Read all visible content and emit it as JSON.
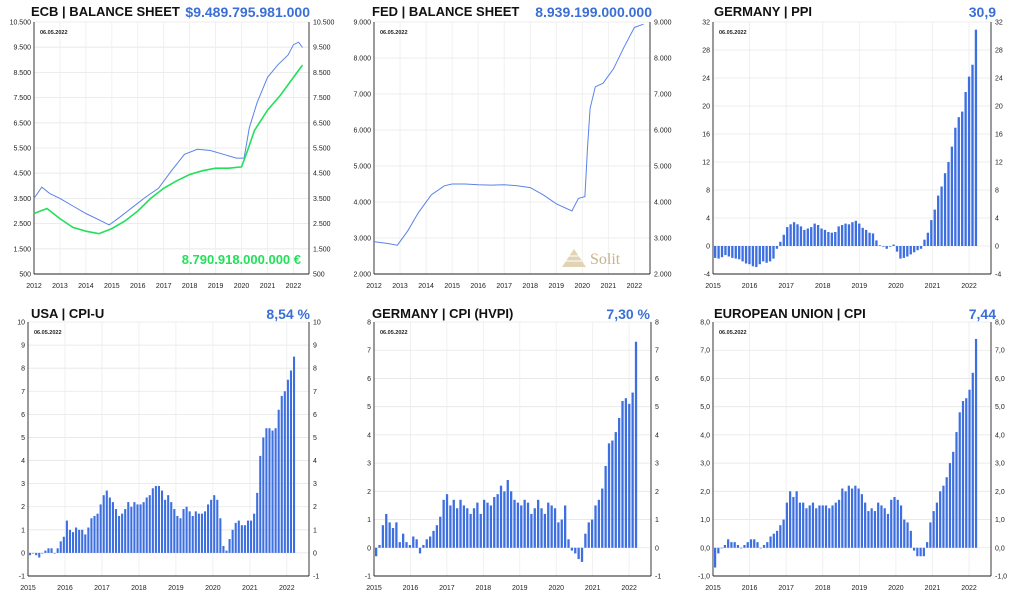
{
  "chart_data": [
    {
      "id": "ecb",
      "type": "line",
      "title": "ECB | BALANCE SHEET",
      "headline": "$9.489.795.981.000",
      "date_label": "06.05.2022",
      "annotation": "8.790.918.000.000 €",
      "ylim": [
        500,
        10500
      ],
      "yticks": [
        "500",
        "1.500",
        "2.500",
        "3.500",
        "4.500",
        "5.500",
        "6.500",
        "7.500",
        "8.500",
        "9.500",
        "10.500"
      ],
      "xlim": [
        2012,
        2022.6
      ],
      "xticks": [
        "2012",
        "2013",
        "2014",
        "2015",
        "2016",
        "2017",
        "2018",
        "2019",
        "2020",
        "2021",
        "2022"
      ],
      "grid": true,
      "series": [
        {
          "color": "#5b82e8",
          "x": [
            2012,
            2012.3,
            2012.6,
            2013,
            2013.5,
            2014,
            2014.5,
            2014.9,
            2015.3,
            2015.8,
            2016.3,
            2016.8,
            2017.3,
            2017.8,
            2018.3,
            2018.8,
            2019.3,
            2019.8,
            2020.1,
            2020.3,
            2020.6,
            2021,
            2021.4,
            2021.8,
            2022,
            2022.2,
            2022.35
          ],
          "y": [
            3500,
            3950,
            3700,
            3500,
            3200,
            2900,
            2650,
            2450,
            2750,
            3150,
            3550,
            3900,
            4600,
            5250,
            5450,
            5400,
            5250,
            5100,
            5100,
            6300,
            7300,
            8300,
            8800,
            9200,
            9600,
            9700,
            9490
          ]
        },
        {
          "color": "#22e05a",
          "x": [
            2012,
            2012.5,
            2013,
            2013.5,
            2014,
            2014.5,
            2015,
            2015.5,
            2016,
            2016.5,
            2017,
            2017.5,
            2018,
            2018.5,
            2019,
            2019.5,
            2020,
            2020.2,
            2020.5,
            2021,
            2021.5,
            2022,
            2022.35
          ],
          "y": [
            2900,
            3100,
            2700,
            2350,
            2200,
            2100,
            2300,
            2600,
            3000,
            3500,
            3900,
            4200,
            4450,
            4600,
            4700,
            4700,
            4750,
            5300,
            6200,
            7000,
            7600,
            8300,
            8790
          ]
        }
      ]
    },
    {
      "id": "fed",
      "type": "line",
      "title": "FED | BALANCE SHEET",
      "headline": "8.939.199.000.000",
      "date_label": "06.05.2022",
      "watermark": "Solit",
      "ylim": [
        2000,
        9000
      ],
      "yticks": [
        "2.000",
        "3.000",
        "4.000",
        "5.000",
        "6.000",
        "7.000",
        "8.000",
        "9.000"
      ],
      "xlim": [
        2012,
        2022.6
      ],
      "xticks": [
        "2012",
        "2013",
        "2014",
        "2015",
        "2016",
        "2017",
        "2018",
        "2019",
        "2020",
        "2021",
        "2022"
      ],
      "grid": true,
      "series": [
        {
          "color": "#5b82e8",
          "x": [
            2012,
            2012.5,
            2012.9,
            2013.3,
            2013.7,
            2014.2,
            2014.7,
            2015,
            2015.5,
            2016,
            2016.5,
            2017,
            2017.5,
            2018,
            2018.5,
            2019,
            2019.6,
            2019.85,
            2020.1,
            2020.2,
            2020.3,
            2020.5,
            2020.8,
            2021.2,
            2021.6,
            2022,
            2022.35
          ],
          "y": [
            2900,
            2850,
            2800,
            3200,
            3700,
            4200,
            4450,
            4500,
            4500,
            4480,
            4470,
            4480,
            4450,
            4400,
            4200,
            3950,
            3750,
            4100,
            4150,
            5500,
            6600,
            7200,
            7300,
            7700,
            8300,
            8850,
            8940
          ]
        }
      ]
    },
    {
      "id": "ppi",
      "type": "bar",
      "title": "GERMANY | PPI",
      "headline": "30,9",
      "date_label": "06.05.2022",
      "ylim": [
        -4,
        32
      ],
      "yticks": [
        "-4",
        "0",
        "4",
        "8",
        "12",
        "16",
        "20",
        "24",
        "28",
        "32"
      ],
      "xlim": [
        2015,
        2022.6
      ],
      "xticks": [
        "2015",
        "2016",
        "2017",
        "2018",
        "2019",
        "2020",
        "2021",
        "2022"
      ],
      "grid": true,
      "bar_color": "#3d6fe0",
      "values": [
        -1.7,
        -1.8,
        -1.6,
        -1.3,
        -1.5,
        -1.7,
        -1.8,
        -1.9,
        -2.2,
        -2.5,
        -2.6,
        -2.9,
        -3.0,
        -2.6,
        -2.2,
        -2.4,
        -2.2,
        -1.8,
        -0.4,
        0.6,
        1.6,
        2.7,
        3.1,
        3.4,
        3.1,
        2.8,
        2.3,
        2.5,
        2.7,
        3.2,
        3.0,
        2.5,
        2.3,
        2.0,
        1.9,
        2.0,
        2.8,
        3.0,
        3.2,
        3.1,
        3.4,
        3.6,
        3.2,
        2.6,
        2.3,
        1.9,
        1.8,
        0.8,
        0.1,
        -0.1,
        -0.4,
        -0.1,
        0.2,
        -0.8,
        -1.8,
        -1.7,
        -1.5,
        -1.2,
        -0.9,
        -0.6,
        -0.4,
        0.9,
        1.9,
        3.7,
        5.2,
        7.2,
        8.5,
        10.4,
        12.0,
        14.2,
        16.9,
        18.4,
        19.2,
        22.0,
        24.2,
        25.9,
        30.9
      ]
    },
    {
      "id": "usa",
      "type": "bar",
      "title": "USA | CPI-U",
      "headline": "8,54 %",
      "date_label": "06.05.2022",
      "ylim": [
        -1,
        10
      ],
      "yticks": [
        "-1",
        "0",
        "1",
        "2",
        "3",
        "4",
        "5",
        "6",
        "7",
        "8",
        "9",
        "10"
      ],
      "xlim": [
        2015,
        2022.6
      ],
      "xticks": [
        "2015",
        "2016",
        "2017",
        "2018",
        "2019",
        "2020",
        "2021",
        "2022"
      ],
      "grid": true,
      "bar_color": "#3d6fe0",
      "values": [
        -0.1,
        0.0,
        -0.1,
        -0.2,
        0.0,
        0.1,
        0.2,
        0.2,
        0.0,
        0.2,
        0.5,
        0.7,
        1.4,
        1.0,
        0.9,
        1.1,
        1.0,
        1.0,
        0.8,
        1.1,
        1.5,
        1.6,
        1.7,
        2.1,
        2.5,
        2.7,
        2.4,
        2.2,
        1.9,
        1.6,
        1.7,
        1.9,
        2.2,
        2.0,
        2.2,
        2.1,
        2.1,
        2.2,
        2.4,
        2.5,
        2.8,
        2.9,
        2.9,
        2.7,
        2.3,
        2.5,
        2.2,
        1.9,
        1.6,
        1.5,
        1.9,
        2.0,
        1.8,
        1.6,
        1.8,
        1.7,
        1.7,
        1.8,
        2.1,
        2.3,
        2.5,
        2.3,
        1.5,
        0.3,
        0.1,
        0.6,
        1.0,
        1.3,
        1.4,
        1.2,
        1.2,
        1.4,
        1.4,
        1.7,
        2.6,
        4.2,
        5.0,
        5.4,
        5.4,
        5.3,
        5.4,
        6.2,
        6.8,
        7.0,
        7.5,
        7.9,
        8.5
      ]
    },
    {
      "id": "hvpi",
      "type": "bar",
      "title": "GERMANY | CPI (HVPI)",
      "headline": "7,30 %",
      "date_label": "06.05.2022",
      "ylim": [
        -1,
        8
      ],
      "yticks": [
        "-1",
        "0",
        "1",
        "2",
        "3",
        "4",
        "5",
        "6",
        "7",
        "8"
      ],
      "xlim": [
        2015,
        2022.6
      ],
      "xticks": [
        "2015",
        "2016",
        "2017",
        "2018",
        "2019",
        "2020",
        "2021",
        "2022"
      ],
      "grid": true,
      "bar_color": "#3d6fe0",
      "values": [
        -0.3,
        0.1,
        0.8,
        1.2,
        0.9,
        0.7,
        0.9,
        0.2,
        0.5,
        0.2,
        0.1,
        0.4,
        0.3,
        -0.2,
        0.1,
        0.3,
        0.4,
        0.6,
        0.8,
        1.1,
        1.7,
        1.9,
        1.5,
        1.7,
        1.4,
        1.7,
        1.5,
        1.4,
        1.2,
        1.4,
        1.6,
        1.2,
        1.7,
        1.6,
        1.5,
        1.8,
        1.9,
        2.2,
        2.0,
        2.4,
        2.0,
        1.7,
        1.6,
        1.5,
        1.7,
        1.6,
        1.2,
        1.4,
        1.7,
        1.4,
        1.2,
        1.6,
        1.5,
        1.4,
        0.9,
        1.0,
        1.5,
        0.3,
        -0.1,
        -0.2,
        -0.4,
        -0.5,
        0.5,
        0.9,
        1.0,
        1.5,
        1.7,
        2.1,
        2.9,
        3.7,
        3.8,
        4.1,
        4.6,
        5.2,
        5.3,
        5.1,
        5.5,
        7.3
      ]
    },
    {
      "id": "eu",
      "type": "bar",
      "title": "EUROPEAN UNION | CPI",
      "headline": "7,44",
      "date_label": "06.05.2022",
      "ylim": [
        -1,
        8
      ],
      "yticks": [
        "-1,0",
        "0,0",
        "1,0",
        "2,0",
        "3,0",
        "4,0",
        "5,0",
        "6,0",
        "7,0",
        "8,0"
      ],
      "xlim": [
        2015,
        2022.6
      ],
      "xticks": [
        "2015",
        "2016",
        "2017",
        "2018",
        "2019",
        "2020",
        "2021",
        "2022"
      ],
      "grid": true,
      "bar_color": "#3d6fe0",
      "values": [
        -0.7,
        -0.2,
        0.0,
        0.1,
        0.3,
        0.2,
        0.2,
        0.1,
        0.0,
        0.1,
        0.2,
        0.3,
        0.3,
        0.2,
        0.0,
        0.1,
        0.2,
        0.4,
        0.5,
        0.6,
        0.8,
        1.0,
        1.6,
        2.0,
        1.8,
        2.0,
        1.6,
        1.6,
        1.4,
        1.5,
        1.6,
        1.4,
        1.5,
        1.5,
        1.5,
        1.4,
        1.5,
        1.6,
        1.7,
        2.1,
        2.0,
        2.2,
        2.1,
        2.2,
        2.1,
        1.9,
        1.6,
        1.3,
        1.4,
        1.3,
        1.6,
        1.5,
        1.4,
        1.2,
        1.7,
        1.8,
        1.7,
        1.5,
        1.0,
        0.9,
        0.6,
        -0.1,
        -0.3,
        -0.3,
        -0.3,
        0.2,
        0.9,
        1.3,
        1.6,
        2.0,
        2.2,
        2.5,
        3.0,
        3.4,
        4.1,
        4.8,
        5.2,
        5.3,
        5.6,
        6.2,
        7.4
      ]
    }
  ]
}
